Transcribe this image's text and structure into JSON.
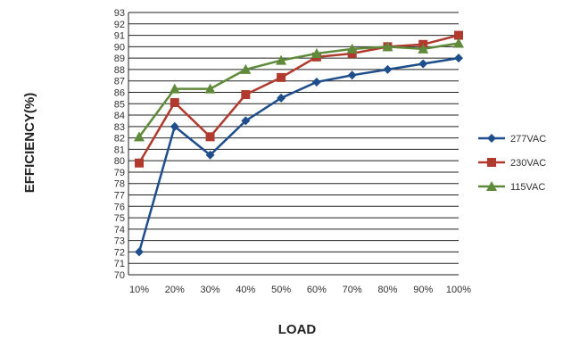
{
  "chart_data": {
    "type": "line",
    "title": "",
    "xlabel": "LOAD",
    "ylabel": "EFFICIENCY(%)",
    "categories": [
      "10%",
      "20%",
      "30%",
      "40%",
      "50%",
      "60%",
      "70%",
      "80%",
      "90%",
      "100%"
    ],
    "ylim": [
      70,
      93
    ],
    "yticks": [
      70,
      71,
      72,
      73,
      74,
      75,
      76,
      77,
      78,
      79,
      80,
      81,
      82,
      83,
      84,
      85,
      86,
      87,
      88,
      89,
      90,
      91,
      92,
      93
    ],
    "grid": "horizontal",
    "legend_position": "right",
    "series": [
      {
        "name": "277VAC",
        "marker": "diamond",
        "color": "#1f4e8c",
        "values": [
          72.0,
          83.0,
          80.5,
          83.5,
          85.5,
          86.9,
          87.5,
          88.0,
          88.5,
          89.0
        ]
      },
      {
        "name": "230VAC",
        "marker": "square",
        "color": "#b03a2e",
        "values": [
          79.8,
          85.1,
          82.1,
          85.8,
          87.3,
          89.1,
          89.4,
          90.0,
          90.2,
          91.0
        ]
      },
      {
        "name": "115VAC",
        "marker": "triangle",
        "color": "#5e8a3a",
        "values": [
          82.1,
          86.3,
          86.3,
          88.0,
          88.8,
          89.4,
          89.8,
          90.0,
          89.8,
          90.3
        ]
      }
    ]
  }
}
